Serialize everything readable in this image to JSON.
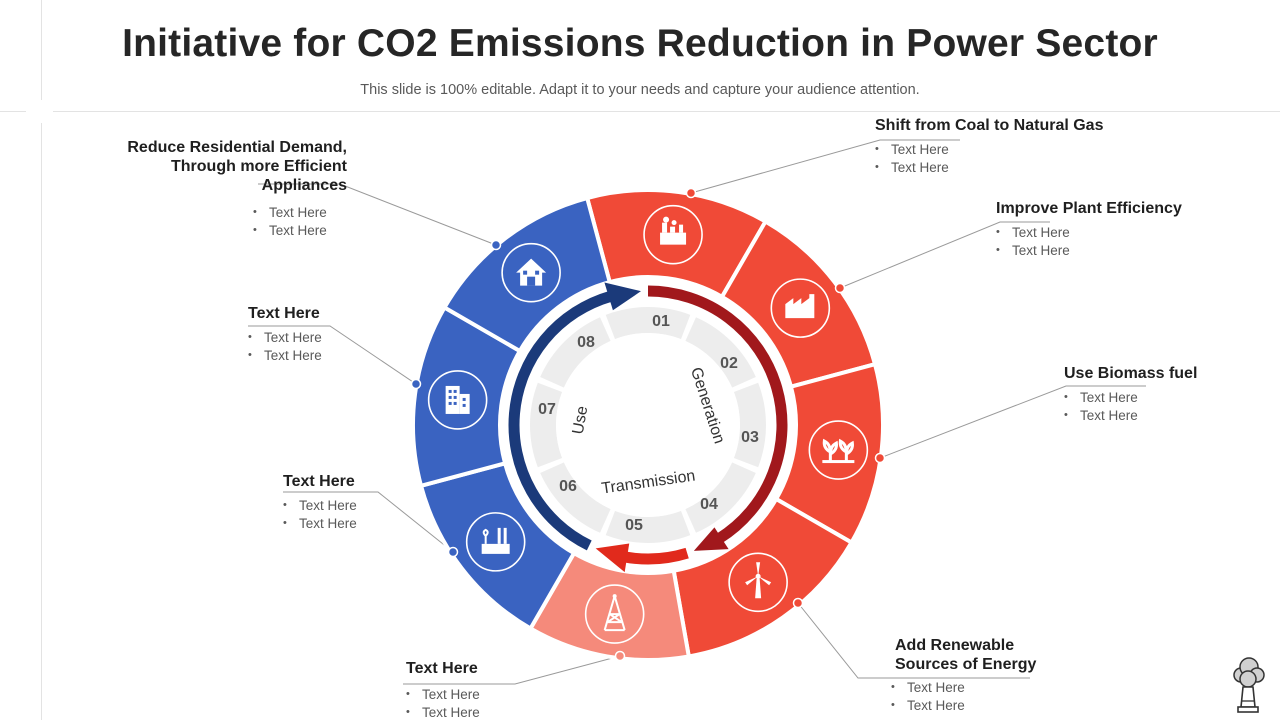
{
  "title": "Initiative for CO2 Emissions Reduction in Power Sector",
  "subtitle": "This slide is 100% editable. Adapt it to your needs and capture your audience attention.",
  "center_labels": {
    "generation": "Generation",
    "transmission": "Transmission",
    "use": "Use"
  },
  "steps": [
    "01",
    "02",
    "03",
    "04",
    "05",
    "06",
    "07",
    "08"
  ],
  "colors": {
    "red": "#f04a37",
    "light_red": "#f58a7b",
    "blue": "#3a63c1",
    "dark_red": "#a1181c",
    "navy": "#1b3a7a"
  },
  "segments": [
    {
      "icon": "power-plant-icon"
    },
    {
      "icon": "factory-icon"
    },
    {
      "icon": "biomass-plant-icon"
    },
    {
      "icon": "wind-turbine-icon"
    },
    {
      "icon": "transmission-tower-icon"
    },
    {
      "icon": "industrial-plant-icon"
    },
    {
      "icon": "office-building-icon"
    },
    {
      "icon": "house-icon"
    }
  ],
  "labels": [
    {
      "heading": "Shift from Coal to Natural Gas",
      "bullets": [
        "Text Here",
        "Text Here"
      ]
    },
    {
      "heading": "Improve Plant Efficiency",
      "bullets": [
        "Text Here",
        "Text Here"
      ]
    },
    {
      "heading": "Use Biomass fuel",
      "bullets": [
        "Text Here",
        "Text Here"
      ]
    },
    {
      "heading": "Add Renewable\nSources of Energy",
      "bullets": [
        "Text Here",
        "Text Here"
      ]
    },
    {
      "heading": "Text Here",
      "bullets": [
        "Text Here",
        "Text Here"
      ]
    },
    {
      "heading": "Text Here",
      "bullets": [
        "Text Here",
        "Text Here"
      ]
    },
    {
      "heading": "Text Here",
      "bullets": [
        "Text Here",
        "Text Here"
      ]
    },
    {
      "heading": "Reduce Residential Demand,\nThrough more Efficient Appliances",
      "bullets": [
        "Text Here",
        "Text Here"
      ]
    }
  ],
  "logo_icon": "smokestack-icon"
}
